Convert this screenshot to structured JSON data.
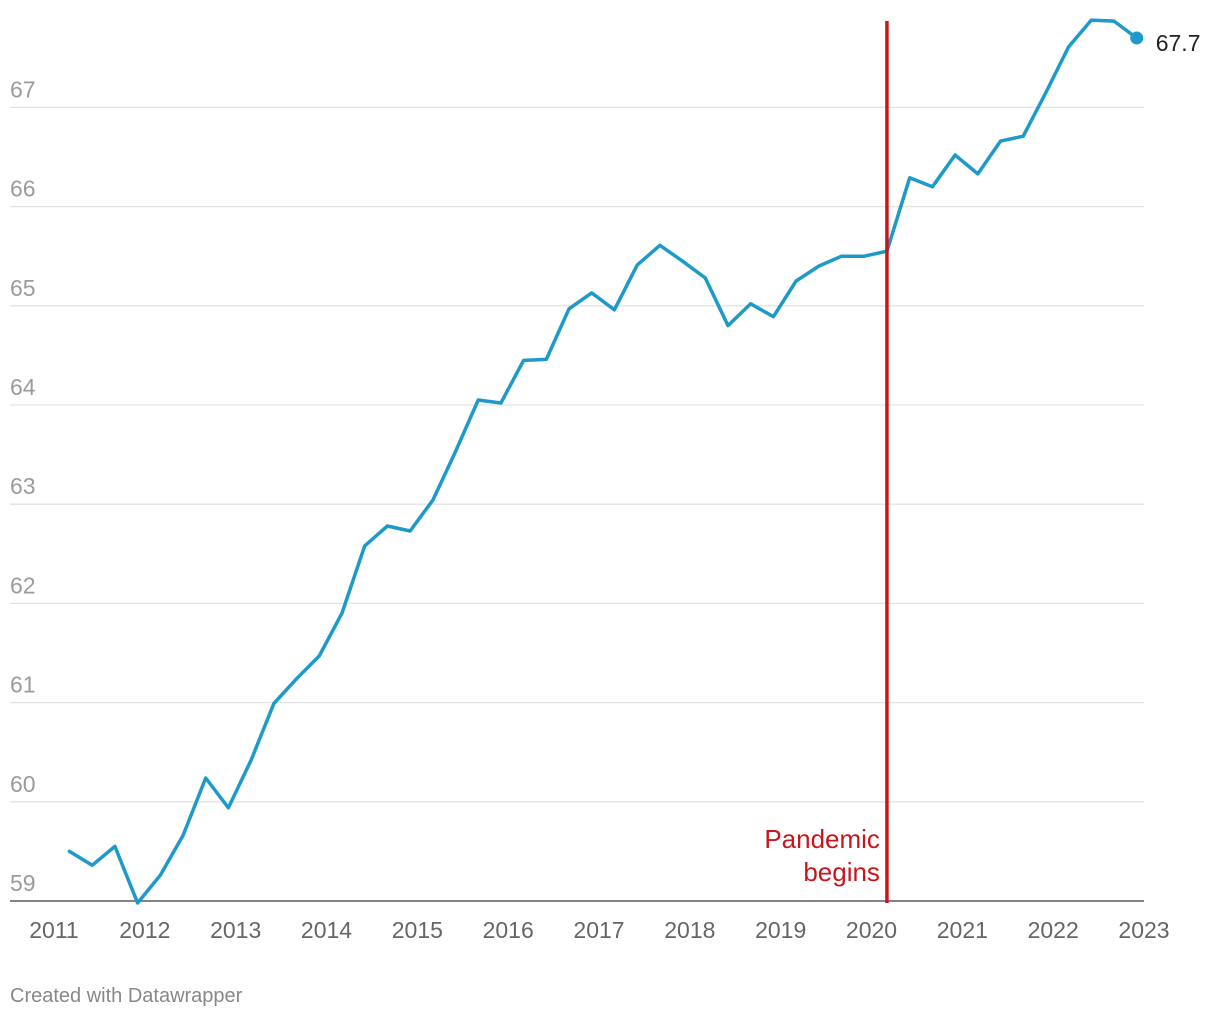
{
  "chart_data": {
    "type": "line",
    "title": "",
    "xlabel": "",
    "ylabel": "",
    "xlim": [
      2011,
      2023
    ],
    "ylim": [
      59,
      67.9
    ],
    "grid": true,
    "x_ticks": [
      "2011",
      "2012",
      "2013",
      "2014",
      "2015",
      "2016",
      "2017",
      "2018",
      "2019",
      "2020",
      "2021",
      "2022",
      "2023"
    ],
    "y_ticks": [
      "59",
      "60",
      "61",
      "62",
      "63",
      "64",
      "65",
      "66",
      "67"
    ],
    "series": [
      {
        "color": "#1d9ac9",
        "x": [
          2011.17,
          2011.42,
          2011.67,
          2011.92,
          2012.17,
          2012.42,
          2012.67,
          2012.92,
          2013.17,
          2013.42,
          2013.67,
          2013.92,
          2014.17,
          2014.42,
          2014.67,
          2014.92,
          2015.17,
          2015.42,
          2015.67,
          2015.92,
          2016.17,
          2016.42,
          2016.67,
          2016.92,
          2017.17,
          2017.42,
          2017.67,
          2017.92,
          2018.17,
          2018.42,
          2018.67,
          2018.92,
          2019.17,
          2019.42,
          2019.67,
          2019.92,
          2020.17,
          2020.42,
          2020.67,
          2020.92,
          2021.17,
          2021.42,
          2021.67,
          2021.92,
          2022.17,
          2022.42,
          2022.67,
          2022.92
        ],
        "y": [
          59.5,
          59.36,
          59.55,
          58.98,
          59.26,
          59.66,
          60.24,
          59.94,
          60.42,
          60.99,
          61.24,
          61.47,
          61.9,
          62.58,
          62.78,
          62.73,
          63.04,
          63.53,
          64.05,
          64.02,
          64.45,
          64.46,
          64.97,
          65.13,
          64.96,
          65.41,
          65.61,
          65.45,
          65.28,
          64.8,
          65.02,
          64.89,
          65.25,
          65.4,
          65.5,
          65.5,
          65.55,
          66.29,
          66.2,
          66.52,
          66.33,
          66.66,
          66.71,
          67.15,
          67.61,
          67.88,
          67.87,
          67.7
        ]
      }
    ],
    "end_label": "67.7",
    "annotation": {
      "x": 2020.17,
      "color": "#c8161d",
      "line1": "Pandemic",
      "line2": "begins"
    }
  },
  "credit": "Created with Datawrapper"
}
